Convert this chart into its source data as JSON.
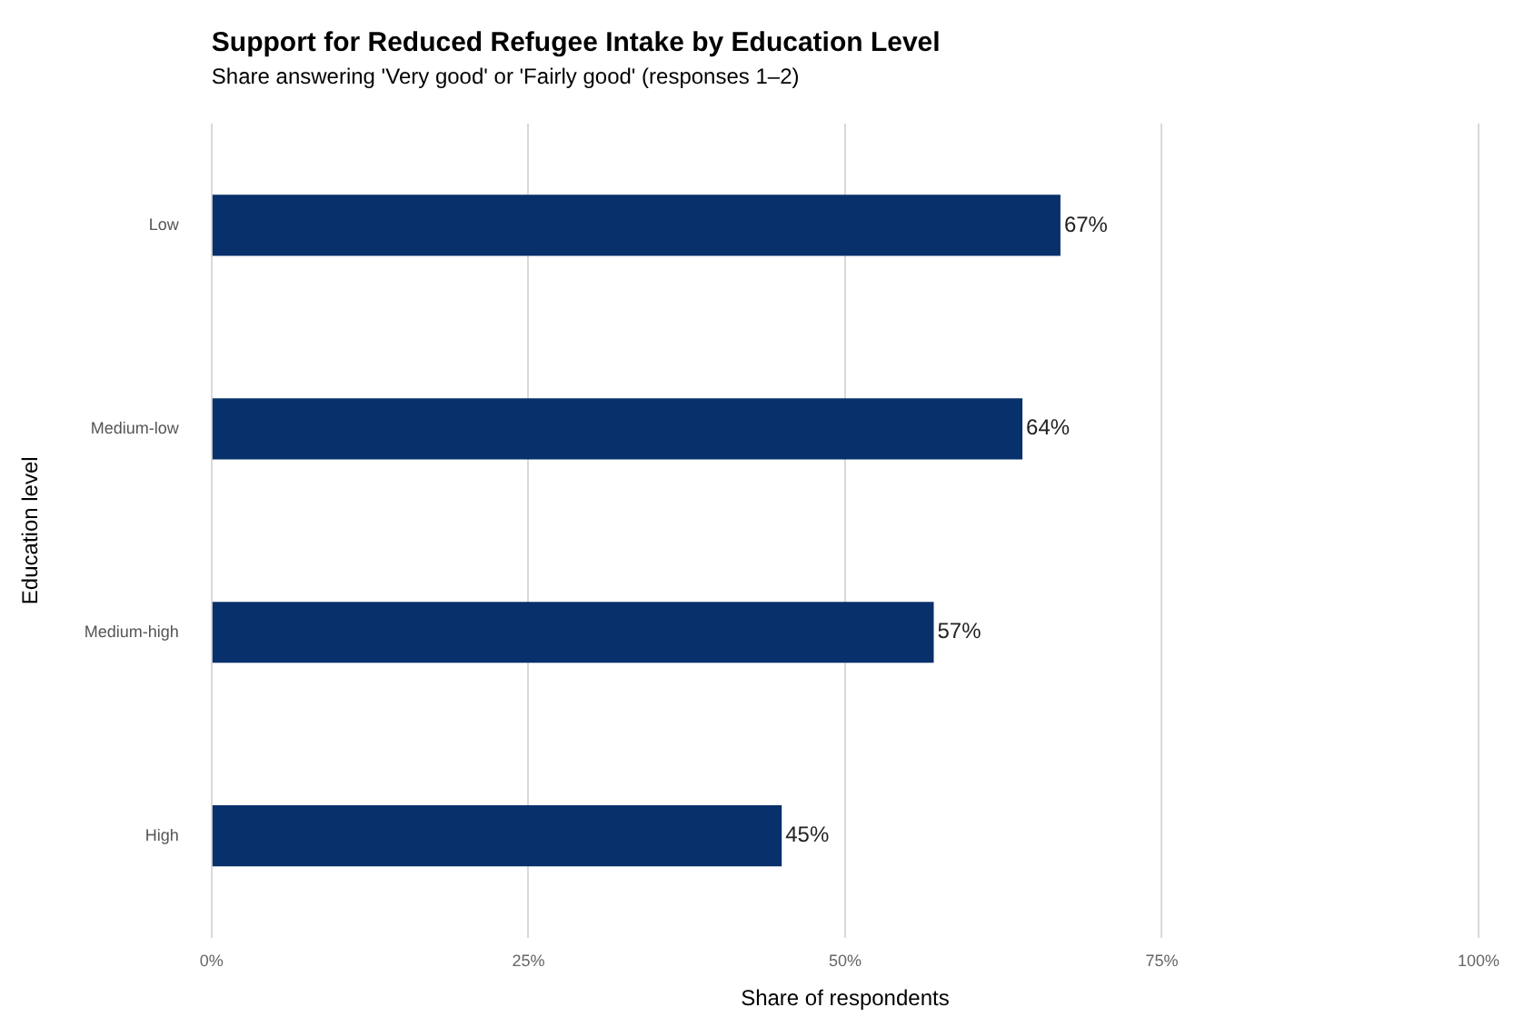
{
  "chart_data": {
    "type": "bar",
    "orientation": "horizontal",
    "title": "Support for Reduced Refugee Intake by Education Level",
    "subtitle": "Share answering 'Very good' or 'Fairly good' (responses 1–2)",
    "xlabel": "Share of respondents",
    "ylabel": "Education level",
    "categories": [
      "Low",
      "Medium-low",
      "Medium-high",
      "High"
    ],
    "values": [
      67,
      64,
      57,
      45
    ],
    "value_labels": [
      "67%",
      "64%",
      "57%",
      "45%"
    ],
    "color": "#08306b",
    "xlim": [
      0,
      100
    ],
    "xticks": [
      {
        "value": 0,
        "label": "0%"
      },
      {
        "value": 25,
        "label": "25%"
      },
      {
        "value": 50,
        "label": "50%"
      },
      {
        "value": 75,
        "label": "75%"
      },
      {
        "value": 100,
        "label": "100%"
      }
    ],
    "grid": "x",
    "legend": false
  }
}
